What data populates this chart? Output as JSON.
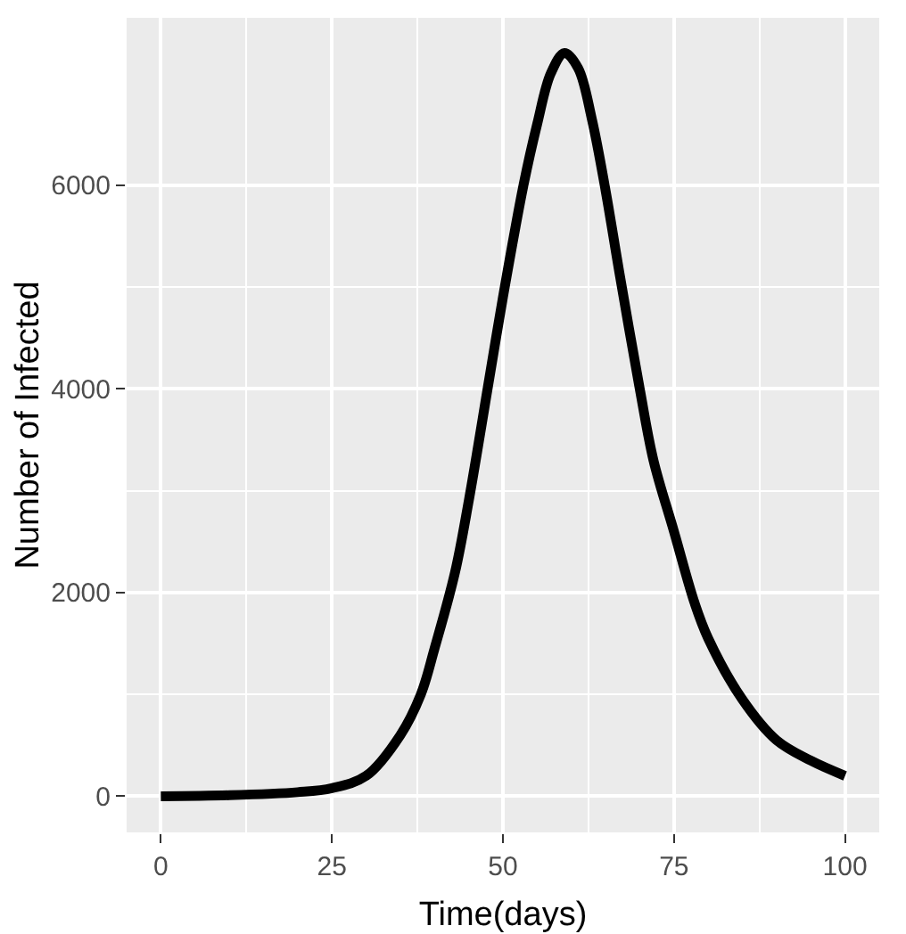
{
  "chart_data": {
    "type": "line",
    "xlabel": "Time(days)",
    "ylabel": "Number of Infected",
    "x": [
      0,
      10,
      20,
      25,
      30,
      35,
      38,
      40,
      43,
      45,
      48,
      50,
      53,
      55,
      57,
      59,
      61,
      63,
      65,
      67,
      70,
      72,
      75,
      78,
      80,
      85,
      90,
      95,
      100
    ],
    "series": [
      {
        "color": "#000000",
        "values": [
          0,
          10,
          40,
          80,
          200,
          600,
          1000,
          1450,
          2200,
          2900,
          4100,
          4900,
          6000,
          6600,
          7100,
          7300,
          7150,
          6650,
          5950,
          5150,
          4000,
          3300,
          2600,
          1900,
          1550,
          950,
          550,
          350,
          200
        ]
      }
    ],
    "xlim": [
      -5,
      105
    ],
    "ylim": [
      -355,
      7645
    ],
    "xticks": [
      0,
      25,
      50,
      75,
      100
    ],
    "yticks": [
      0,
      2000,
      4000,
      6000
    ],
    "grid": true,
    "line_style": "solid",
    "marker": "none"
  }
}
